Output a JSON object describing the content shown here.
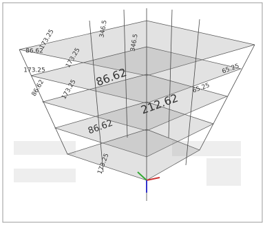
{
  "viewport": {
    "labels": [
      {
        "text": "173.25",
        "size": "small"
      },
      {
        "text": "173.25",
        "size": "small"
      },
      {
        "text": "173.25",
        "size": "small"
      },
      {
        "text": "173.25",
        "size": "small"
      },
      {
        "text": "346.5",
        "size": "small"
      },
      {
        "text": "346.5",
        "size": "small"
      },
      {
        "text": "86.62",
        "size": "large"
      },
      {
        "text": "212.62",
        "size": "large"
      },
      {
        "text": "86.62",
        "size": "medium"
      },
      {
        "text": "65.25",
        "size": "small"
      },
      {
        "text": "65.25",
        "size": "small"
      },
      {
        "text": "173.25",
        "size": "small"
      },
      {
        "text": "86.62",
        "size": "small"
      },
      {
        "text": "86.62",
        "size": "small"
      }
    ]
  }
}
